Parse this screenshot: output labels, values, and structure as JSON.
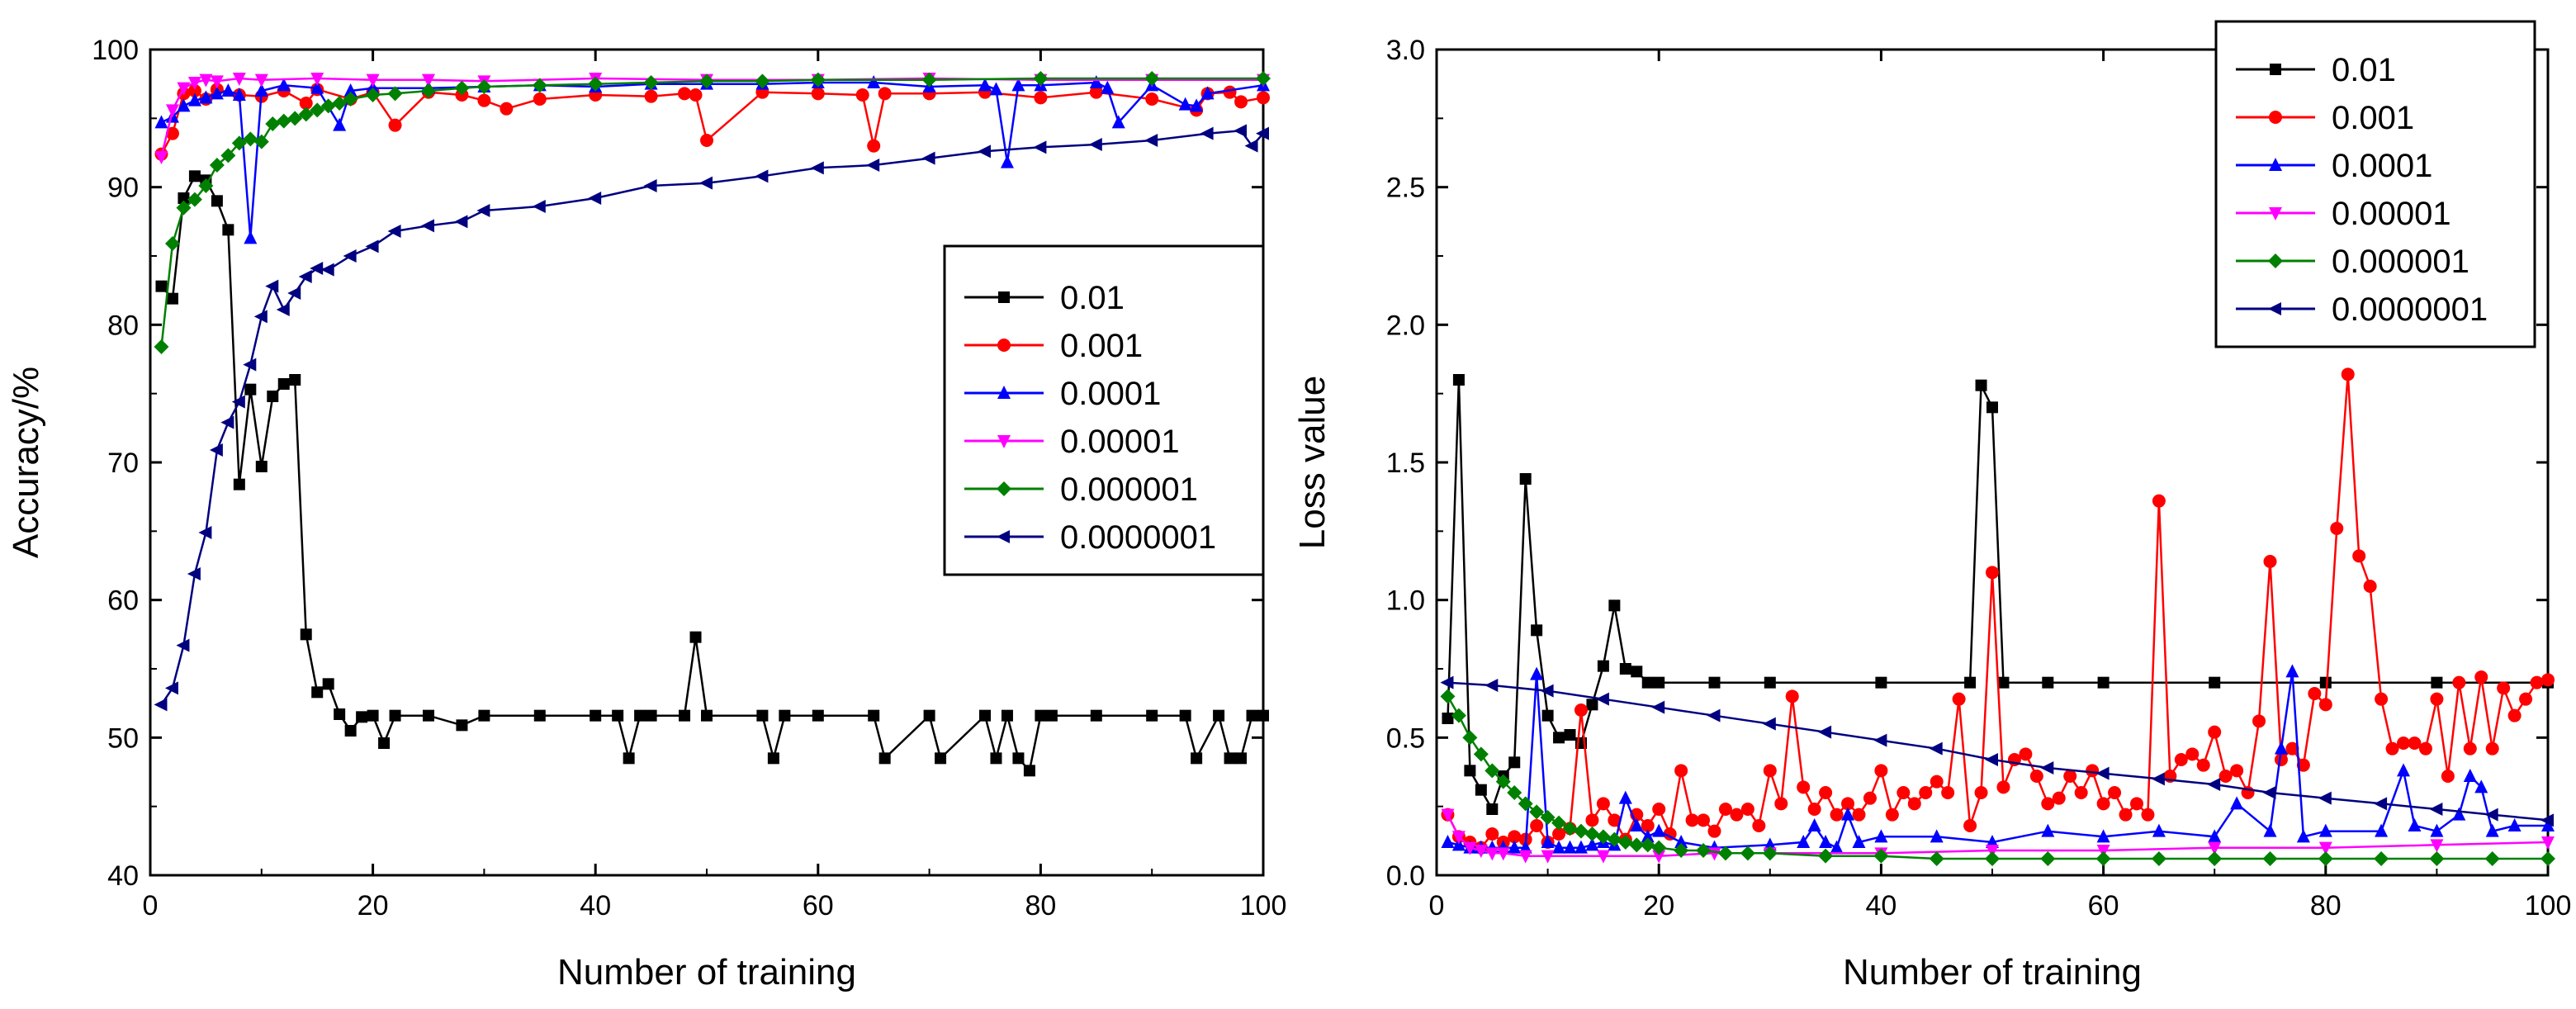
{
  "chart_data": [
    {
      "type": "line",
      "xlabel": "Number of training",
      "ylabel": "Accuracy/%",
      "xlim": [
        0,
        100
      ],
      "ylim": [
        40,
        100
      ],
      "xticks": [
        "0",
        "20",
        "40",
        "60",
        "80",
        "100"
      ],
      "yticks": [
        "40",
        "50",
        "60",
        "70",
        "80",
        "90",
        "100"
      ],
      "legend_position": "middle-right",
      "series": [
        {
          "name": "0.01",
          "color": "#000000",
          "marker": "square",
          "x": [
            1,
            2,
            3,
            4,
            5,
            6,
            7,
            8,
            9,
            10,
            11,
            12,
            13,
            14,
            15,
            16,
            17,
            18,
            19,
            20,
            21,
            22,
            25,
            28,
            30,
            35,
            40,
            42,
            43,
            44,
            45,
            48,
            49,
            50,
            55,
            56,
            57,
            60,
            65,
            66,
            70,
            71,
            75,
            76,
            77,
            78,
            79,
            80,
            81,
            85,
            90,
            93,
            94,
            96,
            97,
            98,
            99,
            100
          ],
          "y": [
            82.8,
            81.9,
            89.2,
            90.8,
            90.5,
            89.0,
            86.9,
            68.4,
            75.3,
            69.7,
            74.8,
            75.7,
            76.0,
            57.5,
            53.3,
            53.9,
            51.7,
            50.5,
            51.5,
            51.6,
            49.6,
            51.6,
            51.6,
            50.9,
            51.6,
            51.6,
            51.6,
            51.6,
            48.5,
            51.6,
            51.6,
            51.6,
            57.3,
            51.6,
            51.6,
            48.5,
            51.6,
            51.6,
            51.6,
            48.5,
            51.6,
            48.5,
            51.6,
            48.5,
            51.6,
            48.5,
            47.6,
            51.6,
            51.6,
            51.6,
            51.6,
            51.6,
            48.5,
            51.6,
            48.5,
            48.5,
            51.6,
            51.6
          ]
        },
        {
          "name": "0.001",
          "color": "#ff0000",
          "marker": "circle",
          "x": [
            1,
            2,
            3,
            4,
            5,
            6,
            8,
            10,
            12,
            14,
            15,
            18,
            20,
            22,
            25,
            28,
            30,
            32,
            35,
            40,
            45,
            48,
            49,
            50,
            55,
            60,
            64,
            65,
            66,
            70,
            75,
            80,
            85,
            90,
            94,
            95,
            97,
            98,
            100
          ],
          "y": [
            92.4,
            93.9,
            96.8,
            97.0,
            96.4,
            97.1,
            96.7,
            96.6,
            97.0,
            96.1,
            97.1,
            96.4,
            96.9,
            94.5,
            96.9,
            96.7,
            96.3,
            95.7,
            96.4,
            96.7,
            96.6,
            96.8,
            96.7,
            93.4,
            96.9,
            96.8,
            96.7,
            93.0,
            96.8,
            96.8,
            96.9,
            96.5,
            96.9,
            96.4,
            95.6,
            96.8,
            96.9,
            96.2,
            96.5
          ]
        },
        {
          "name": "0.0001",
          "color": "#0000ff",
          "marker": "triangle-up",
          "x": [
            1,
            2,
            3,
            4,
            5,
            6,
            7,
            8,
            9,
            10,
            12,
            15,
            17,
            18,
            20,
            25,
            30,
            35,
            40,
            45,
            50,
            55,
            60,
            65,
            70,
            75,
            76,
            77,
            78,
            80,
            85,
            86,
            87,
            90,
            93,
            94,
            95,
            100
          ],
          "y": [
            94.7,
            95.1,
            95.9,
            96.3,
            96.5,
            96.8,
            97.0,
            96.7,
            86.3,
            97.0,
            97.4,
            97.2,
            94.5,
            97.0,
            97.2,
            97.2,
            97.3,
            97.4,
            97.3,
            97.5,
            97.5,
            97.5,
            97.6,
            97.6,
            97.3,
            97.4,
            97.1,
            91.8,
            97.4,
            97.4,
            97.6,
            97.2,
            94.7,
            97.4,
            96.0,
            95.9,
            96.8,
            97.4
          ]
        },
        {
          "name": "0.00001",
          "color": "#ff00ff",
          "marker": "triangle-down",
          "x": [
            1,
            2,
            3,
            4,
            5,
            6,
            8,
            10,
            15,
            20,
            25,
            30,
            40,
            50,
            60,
            70,
            80,
            90,
            100
          ],
          "y": [
            92.2,
            95.6,
            97.2,
            97.6,
            97.8,
            97.7,
            97.9,
            97.8,
            97.9,
            97.8,
            97.8,
            97.7,
            97.9,
            97.8,
            97.8,
            97.9,
            97.8,
            97.8,
            97.8
          ]
        },
        {
          "name": "0.000001",
          "color": "#008000",
          "marker": "diamond",
          "x": [
            1,
            2,
            3,
            4,
            5,
            6,
            7,
            8,
            9,
            10,
            11,
            12,
            13,
            14,
            15,
            16,
            17,
            18,
            20,
            22,
            25,
            28,
            30,
            35,
            40,
            45,
            50,
            55,
            60,
            70,
            80,
            90,
            100
          ],
          "y": [
            78.4,
            85.9,
            88.5,
            89.1,
            90.1,
            91.6,
            92.3,
            93.2,
            93.5,
            93.3,
            94.6,
            94.8,
            95.0,
            95.3,
            95.6,
            95.9,
            96.1,
            96.4,
            96.7,
            96.8,
            97.0,
            97.2,
            97.3,
            97.4,
            97.5,
            97.6,
            97.7,
            97.7,
            97.8,
            97.8,
            97.9,
            97.9,
            97.9
          ]
        },
        {
          "name": "0.0000001",
          "color": "#000080",
          "marker": "triangle-left",
          "x": [
            1,
            2,
            3,
            4,
            5,
            6,
            7,
            8,
            9,
            10,
            11,
            12,
            13,
            14,
            15,
            16,
            18,
            20,
            22,
            25,
            28,
            30,
            35,
            40,
            45,
            50,
            55,
            60,
            65,
            70,
            75,
            80,
            85,
            90,
            95,
            98,
            99,
            100
          ],
          "y": [
            52.4,
            53.6,
            56.7,
            61.9,
            64.9,
            70.9,
            72.9,
            74.4,
            77.1,
            80.6,
            82.8,
            81.1,
            82.3,
            83.5,
            84.1,
            84.0,
            85.0,
            85.7,
            86.8,
            87.2,
            87.5,
            88.3,
            88.6,
            89.2,
            90.1,
            90.3,
            90.8,
            91.4,
            91.6,
            92.1,
            92.6,
            92.9,
            93.1,
            93.4,
            93.9,
            94.1,
            93.0,
            93.9
          ]
        }
      ]
    },
    {
      "type": "line",
      "xlabel": "Number of training",
      "ylabel": "Loss value",
      "xlim": [
        0,
        100
      ],
      "ylim": [
        0,
        3.0
      ],
      "xticks": [
        "0",
        "20",
        "40",
        "60",
        "80",
        "100"
      ],
      "yticks": [
        "0.0",
        "0.5",
        "1.0",
        "1.5",
        "2.0",
        "2.5",
        "3.0"
      ],
      "legend_position": "top-right",
      "series": [
        {
          "name": "0.01",
          "color": "#000000",
          "marker": "square",
          "x": [
            1,
            2,
            3,
            4,
            5,
            6,
            7,
            8,
            9,
            10,
            11,
            12,
            13,
            14,
            15,
            16,
            17,
            18,
            19,
            20,
            25,
            30,
            40,
            48,
            49,
            50,
            51,
            55,
            60,
            70,
            80,
            90,
            100
          ],
          "y": [
            0.57,
            1.8,
            0.38,
            0.31,
            0.24,
            0.36,
            0.41,
            1.44,
            0.89,
            0.58,
            0.5,
            0.51,
            0.48,
            0.62,
            0.76,
            0.98,
            0.75,
            0.74,
            0.7,
            0.7,
            0.7,
            0.7,
            0.7,
            0.7,
            1.78,
            1.7,
            0.7,
            0.7,
            0.7,
            0.7,
            0.7,
            0.7,
            0.7
          ]
        },
        {
          "name": "0.001",
          "color": "#ff0000",
          "marker": "circle",
          "x": [
            1,
            2,
            3,
            4,
            5,
            6,
            7,
            8,
            9,
            10,
            11,
            12,
            13,
            14,
            15,
            16,
            17,
            18,
            19,
            20,
            21,
            22,
            23,
            24,
            25,
            26,
            27,
            28,
            29,
            30,
            31,
            32,
            33,
            34,
            35,
            36,
            37,
            38,
            39,
            40,
            41,
            42,
            43,
            44,
            45,
            46,
            47,
            48,
            49,
            50,
            51,
            52,
            53,
            54,
            55,
            56,
            57,
            58,
            59,
            60,
            61,
            62,
            63,
            64,
            65,
            66,
            67,
            68,
            69,
            70,
            71,
            72,
            73,
            74,
            75,
            76,
            77,
            78,
            79,
            80,
            81,
            82,
            83,
            84,
            85,
            86,
            87,
            88,
            89,
            90,
            91,
            92,
            93,
            94,
            95,
            96,
            97,
            98,
            99,
            100
          ],
          "y": [
            0.22,
            0.14,
            0.12,
            0.1,
            0.15,
            0.12,
            0.14,
            0.13,
            0.18,
            0.12,
            0.15,
            0.17,
            0.6,
            0.2,
            0.26,
            0.2,
            0.13,
            0.22,
            0.18,
            0.24,
            0.15,
            0.38,
            0.2,
            0.2,
            0.16,
            0.24,
            0.22,
            0.24,
            0.18,
            0.38,
            0.26,
            0.65,
            0.32,
            0.24,
            0.3,
            0.22,
            0.26,
            0.22,
            0.28,
            0.38,
            0.22,
            0.3,
            0.26,
            0.3,
            0.34,
            0.3,
            0.64,
            0.18,
            0.3,
            1.1,
            0.32,
            0.42,
            0.44,
            0.36,
            0.26,
            0.28,
            0.36,
            0.3,
            0.38,
            0.26,
            0.3,
            0.22,
            0.26,
            0.22,
            1.36,
            0.36,
            0.42,
            0.44,
            0.4,
            0.52,
            0.36,
            0.38,
            0.3,
            0.56,
            1.14,
            0.42,
            0.46,
            0.4,
            0.66,
            0.62,
            1.26,
            1.82,
            1.16,
            1.05,
            0.64,
            0.46,
            0.48,
            0.48,
            0.46,
            0.64,
            0.36,
            0.7,
            0.46,
            0.72,
            0.46,
            0.68,
            0.58,
            0.64,
            0.7,
            0.71
          ]
        },
        {
          "name": "0.0001",
          "color": "#0000ff",
          "marker": "triangle-up",
          "x": [
            1,
            2,
            3,
            4,
            5,
            6,
            7,
            8,
            9,
            10,
            11,
            12,
            13,
            14,
            15,
            16,
            17,
            18,
            19,
            20,
            22,
            25,
            30,
            33,
            34,
            35,
            36,
            37,
            38,
            40,
            45,
            50,
            55,
            60,
            65,
            70,
            72,
            75,
            76,
            77,
            78,
            80,
            85,
            87,
            88,
            90,
            92,
            93,
            94,
            95,
            97,
            100
          ],
          "y": [
            0.12,
            0.11,
            0.1,
            0.1,
            0.1,
            0.1,
            0.1,
            0.1,
            0.73,
            0.12,
            0.1,
            0.1,
            0.1,
            0.11,
            0.12,
            0.11,
            0.28,
            0.18,
            0.14,
            0.16,
            0.12,
            0.1,
            0.11,
            0.12,
            0.18,
            0.12,
            0.1,
            0.22,
            0.12,
            0.14,
            0.14,
            0.12,
            0.16,
            0.14,
            0.16,
            0.14,
            0.26,
            0.16,
            0.46,
            0.74,
            0.14,
            0.16,
            0.16,
            0.38,
            0.18,
            0.16,
            0.22,
            0.36,
            0.32,
            0.16,
            0.18,
            0.18
          ]
        },
        {
          "name": "0.00001",
          "color": "#ff00ff",
          "marker": "triangle-down",
          "x": [
            1,
            2,
            3,
            4,
            5,
            6,
            8,
            10,
            15,
            20,
            25,
            30,
            40,
            50,
            60,
            70,
            80,
            90,
            100
          ],
          "y": [
            0.22,
            0.14,
            0.1,
            0.09,
            0.08,
            0.08,
            0.07,
            0.07,
            0.07,
            0.07,
            0.08,
            0.08,
            0.08,
            0.09,
            0.09,
            0.1,
            0.1,
            0.11,
            0.12
          ]
        },
        {
          "name": "0.000001",
          "color": "#008000",
          "marker": "diamond",
          "x": [
            1,
            2,
            3,
            4,
            5,
            6,
            7,
            8,
            9,
            10,
            11,
            12,
            13,
            14,
            15,
            16,
            17,
            18,
            19,
            20,
            22,
            24,
            26,
            28,
            30,
            35,
            40,
            45,
            50,
            55,
            60,
            65,
            70,
            75,
            80,
            85,
            90,
            95,
            100
          ],
          "y": [
            0.65,
            0.58,
            0.5,
            0.44,
            0.38,
            0.34,
            0.3,
            0.26,
            0.23,
            0.21,
            0.19,
            0.17,
            0.16,
            0.15,
            0.14,
            0.13,
            0.12,
            0.11,
            0.11,
            0.1,
            0.09,
            0.09,
            0.08,
            0.08,
            0.08,
            0.07,
            0.07,
            0.06,
            0.06,
            0.06,
            0.06,
            0.06,
            0.06,
            0.06,
            0.06,
            0.06,
            0.06,
            0.06,
            0.06
          ]
        },
        {
          "name": "0.0000001",
          "color": "#000080",
          "marker": "triangle-left",
          "x": [
            1,
            5,
            10,
            15,
            20,
            25,
            30,
            35,
            40,
            45,
            50,
            55,
            60,
            65,
            70,
            75,
            80,
            85,
            90,
            95,
            100
          ],
          "y": [
            0.7,
            0.69,
            0.67,
            0.64,
            0.61,
            0.58,
            0.55,
            0.52,
            0.49,
            0.46,
            0.42,
            0.39,
            0.37,
            0.35,
            0.33,
            0.3,
            0.28,
            0.26,
            0.24,
            0.22,
            0.2
          ]
        }
      ]
    }
  ]
}
